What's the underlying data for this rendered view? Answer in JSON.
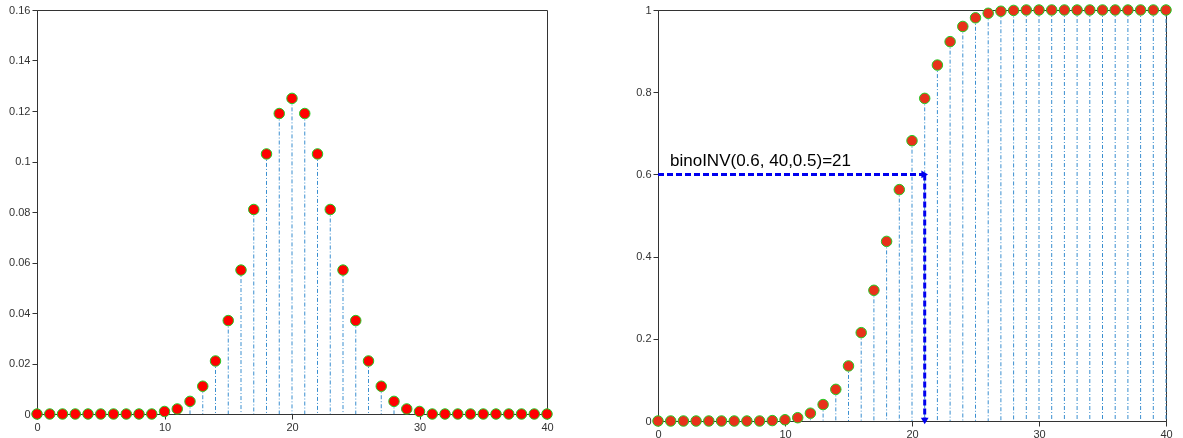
{
  "chart_data": [
    {
      "type": "lollipop",
      "x": [
        0,
        1,
        2,
        3,
        4,
        5,
        6,
        7,
        8,
        9,
        10,
        11,
        12,
        13,
        14,
        15,
        16,
        17,
        18,
        19,
        20,
        21,
        22,
        23,
        24,
        25,
        26,
        27,
        28,
        29,
        30,
        31,
        32,
        33,
        34,
        35,
        36,
        37,
        38,
        39,
        40
      ],
      "series": [
        {
          "color": "#ff0000",
          "values": [
            0,
            0,
            0,
            0,
            0,
            0,
            0,
            0,
            0,
            0,
            0.001,
            0.002,
            0.005,
            0.011,
            0.021,
            0.037,
            0.057,
            0.081,
            0.103,
            0.119,
            0.125,
            0.119,
            0.103,
            0.081,
            0.057,
            0.037,
            0.021,
            0.011,
            0.005,
            0.002,
            0.001,
            0,
            0,
            0,
            0,
            0,
            0,
            0,
            0,
            0,
            0
          ]
        }
      ],
      "xlim": [
        0,
        40
      ],
      "xticks": [
        0,
        10,
        20,
        30,
        40
      ],
      "ylim": [
        0,
        0.16
      ],
      "yticks": [
        0,
        0.02,
        0.04,
        0.06,
        0.08,
        0.1,
        0.12,
        0.14,
        0.16
      ],
      "marker": "circle",
      "line_style": "dashed"
    },
    {
      "type": "lollipop",
      "x": [
        0,
        1,
        2,
        3,
        4,
        5,
        6,
        7,
        8,
        9,
        10,
        11,
        12,
        13,
        14,
        15,
        16,
        17,
        18,
        19,
        20,
        21,
        22,
        23,
        24,
        25,
        26,
        27,
        28,
        29,
        30,
        31,
        32,
        33,
        34,
        35,
        36,
        37,
        38,
        39,
        40
      ],
      "series": [
        {
          "color": "#e8311a",
          "values": [
            0,
            0,
            0,
            0,
            0,
            0,
            0,
            0,
            0,
            0.001,
            0.003,
            0.008,
            0.019,
            0.04,
            0.077,
            0.134,
            0.215,
            0.318,
            0.437,
            0.563,
            0.682,
            0.785,
            0.866,
            0.923,
            0.96,
            0.981,
            0.992,
            0.997,
            0.999,
            1,
            1,
            1,
            1,
            1,
            1,
            1,
            1,
            1,
            1,
            1,
            1
          ]
        }
      ],
      "xlim": [
        0,
        40
      ],
      "xticks": [
        0,
        10,
        20,
        30,
        40
      ],
      "ylim": [
        0,
        1
      ],
      "yticks": [
        0,
        0.2,
        0.4,
        0.6,
        0.8,
        1
      ],
      "marker": "circle",
      "line_style": "dashed",
      "annotations": [
        {
          "text": "binoINV(0.6, 40,0.5)=21",
          "x": 21,
          "y": 0.6
        }
      ]
    }
  ]
}
